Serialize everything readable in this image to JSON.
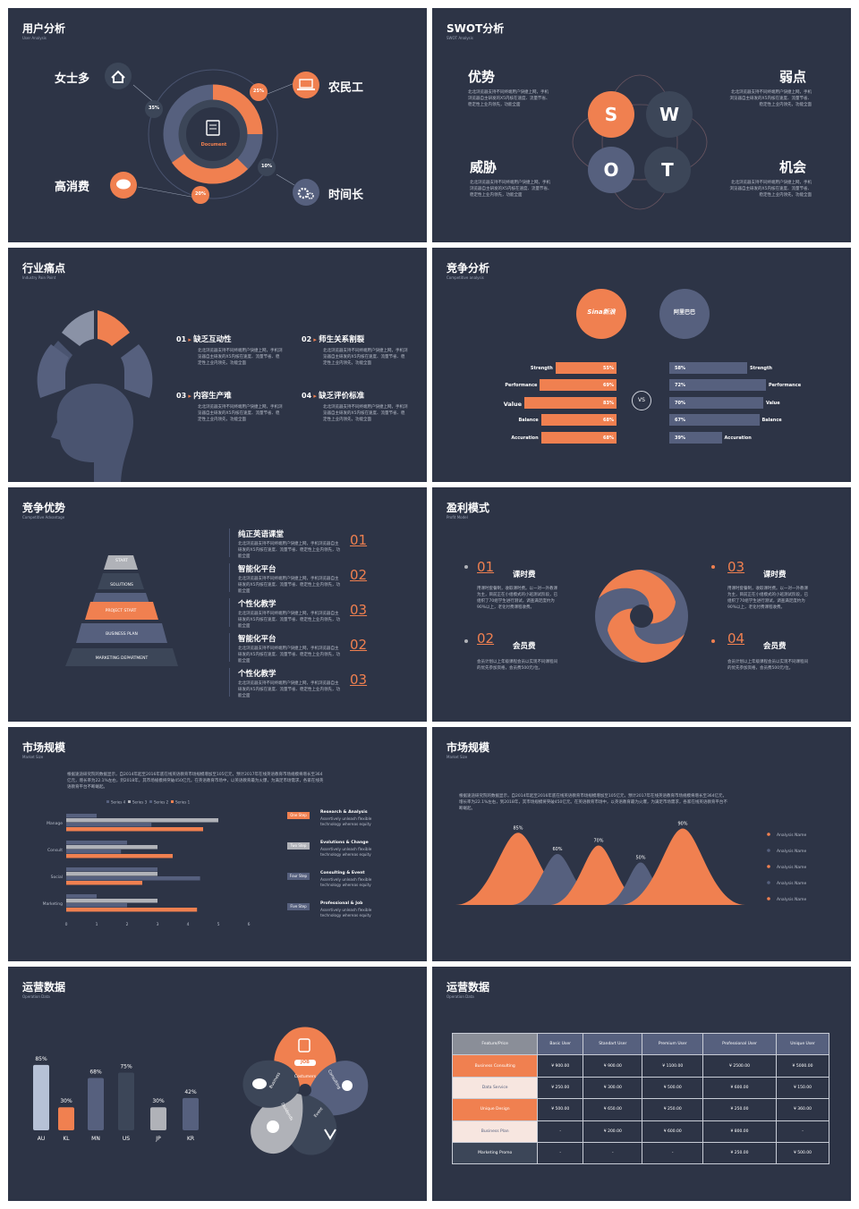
{
  "colors": {
    "bg": "#2d3446",
    "orange": "#f08050",
    "slate": "#56607e",
    "dark": "#3c4658",
    "gray": "#b0b2b8"
  },
  "s1": {
    "title": "用户分析",
    "sub": "User Analysis",
    "center": "Document",
    "l1": "女士多",
    "l2": "农民工",
    "l3": "高消费",
    "l4": "时间长",
    "p1": "35%",
    "p2": "25%",
    "p3": "20%",
    "p4": "10%",
    "icons": [
      "home-icon",
      "laptop-icon",
      "chat-icon",
      "gear-icon",
      "document-icon"
    ]
  },
  "s2": {
    "title": "SWOT分析",
    "sub": "SWOT Analysis",
    "h1": "优势",
    "h2": "弱点",
    "h3": "威胁",
    "h4": "机会",
    "S": "S",
    "W": "W",
    "O": "O",
    "T": "T",
    "d1": "北北浏览器支持不同终端用户快捷上网，手机浏览器自主研发的X5内核在速度、流量节省、稳定性上业内领先，功能全面",
    "d2": "北北浏览器支持不同终端用户快捷上网，手机浏览器自主研发的X5内核在速度、流量节省、稳定性上业内领先，功能全面",
    "d3": "北北浏览器支持不同终端用户快捷上网，手机浏览器自主研发的X5内核在速度、流量节省、稳定性上业内领先，功能全面",
    "d4": "北北浏览器支持不同终端用户快捷上网，手机浏览器自主研发的X5内核在速度、流量节省、稳定性上业内领先，功能全面"
  },
  "s3": {
    "title": "行业痛点",
    "sub": "Industry Pain Point",
    "items": [
      {
        "n": "01",
        "t": "缺乏互动性"
      },
      {
        "n": "02",
        "t": "师生关系割裂"
      },
      {
        "n": "03",
        "t": "内容生产难"
      },
      {
        "n": "04",
        "t": "缺乏评价标准"
      }
    ],
    "desc": "北北浏览器支持不同终端用户快捷上网，手机浏览器自主研发的X5内核在速度、流量节省、稳定性上业内领先，功能全面"
  },
  "s4": {
    "title": "竞争分析",
    "sub": "Competitive analysis",
    "logoL": "Sina新浪",
    "logoR": "阿里巴巴",
    "vs": "VS",
    "labels": [
      "Strength",
      "Performance",
      "Value",
      "Balance",
      "Accuration"
    ],
    "left": [
      55,
      69,
      83,
      68,
      68
    ],
    "right": [
      58,
      72,
      70,
      67,
      39
    ]
  },
  "s5": {
    "title": "竞争优势",
    "sub": "Competitive Advantage",
    "pyramid": [
      "START",
      "SOLUTIONS",
      "PROJECT START",
      "BUSINESS PLAN",
      "MARKETING DEPARTMENT"
    ],
    "items": [
      {
        "t": "纯正英语课堂",
        "n": "01"
      },
      {
        "t": "智能化平台",
        "n": "02"
      },
      {
        "t": "个性化教学",
        "n": "03"
      },
      {
        "t": "智能化平台",
        "n": "02"
      },
      {
        "t": "个性化教学",
        "n": "03"
      }
    ],
    "desc": "北北浏览器支持不同终端用户快捷上网，手机浏览器自主研发的X5内核在速度、流量节省、稳定性上业内领先，功能全面"
  },
  "s6": {
    "title": "盈利模式",
    "sub": "Profit Model",
    "items": [
      {
        "n": "01",
        "t": "课时费"
      },
      {
        "n": "02",
        "t": "会员费"
      },
      {
        "n": "03",
        "t": "课时费"
      },
      {
        "n": "04",
        "t": "会员费"
      }
    ],
    "d1": "用课时套餐制，收取课时费。以一对一外教课为主，目前正在小组模式的小班测试阶段，已组织了70组学生进行测试，调查满足度约为90%以上，老化付费课程收费。",
    "d2": "会员计划以上年级课程会员以实现不同课程间的优先参加资格，会员费500元/位。"
  },
  "s7": {
    "title": "市场规模",
    "sub": "Market Size",
    "para": "根据速途研究院的数据显示，自2014年起至2016年底在线英语教育市场规模增加至105亿元，预计2017年在线英语教育市场规模将增长至364亿元，增长率为22.1%左右，到2018年，其市场规模将突破450亿元。在英语教育市场中，以英语教育最为火爆，为满足市场需求，各家在线英语教育平台不断崛起。",
    "legend": [
      "Series 4",
      "Series 3",
      "Series 2",
      "Series 1"
    ],
    "steps": [
      {
        "tag": "One Step",
        "h": "Research & Analysis",
        "d1": "Assertively unleash flexible",
        "d2": "technology whereas equity"
      },
      {
        "tag": "Two Step",
        "h": "Evolutions & Change",
        "d1": "Assertively unleash flexible",
        "d2": "technology whereas equity"
      },
      {
        "tag": "Four Step",
        "h": "Consulting & Event",
        "d1": "Assertively unleash flexible",
        "d2": "technology whereas equity"
      },
      {
        "tag": "Five Step",
        "h": "Professional & Job",
        "d1": "Assertively unleash flexible",
        "d2": "technology whereas equity"
      }
    ]
  },
  "chart_data": [
    {
      "type": "bar",
      "orientation": "horizontal",
      "categories": [
        "Manage",
        "Consult",
        "Social",
        "Marketing"
      ],
      "series": [
        {
          "name": "Series 4",
          "values": [
            1,
            2,
            3,
            1
          ]
        },
        {
          "name": "Series 3",
          "values": [
            5,
            3,
            3,
            3
          ]
        },
        {
          "name": "Series 2",
          "values": [
            2.8,
            1.8,
            4.4,
            2
          ]
        },
        {
          "name": "Series 1",
          "values": [
            4.5,
            3.5,
            2.5,
            4.3
          ]
        }
      ],
      "xlim": [
        0,
        6
      ],
      "xticks": [
        0,
        1,
        2,
        3,
        4,
        5,
        6
      ]
    },
    {
      "type": "area",
      "title": "",
      "points": [
        {
          "label": "85%",
          "value": 85
        },
        {
          "label": "60%",
          "value": 60
        },
        {
          "label": "70%",
          "value": 70
        },
        {
          "label": "50%",
          "value": 50
        },
        {
          "label": "90%",
          "value": 90
        }
      ],
      "legend": [
        "Analysis Name",
        "Analysis Name",
        "Analysis Name",
        "Analysis Name",
        "Analysis Name"
      ]
    },
    {
      "type": "bar",
      "categories": [
        "AU",
        "KL",
        "MN",
        "US",
        "JP",
        "KR"
      ],
      "values": [
        85,
        30,
        68,
        75,
        30,
        42
      ],
      "labels": [
        "85%",
        "30%",
        "68%",
        "75%",
        "30%",
        "42%"
      ],
      "colors": [
        "#b6c1d6",
        "#f08050",
        "#56607e",
        "#3c4658",
        "#b0b2b8",
        "#56607e"
      ]
    }
  ],
  "s8": {
    "title": "市场规模",
    "sub": "Market Size",
    "para": "根据速途研究院的数据显示，自2014年起至2016年底在线英语教育市场规模增加至105亿元，预计2017年在线英语教育市场规模将增长至364亿元，增长率为22.1%左右，到2018年，其市场规模将突破450亿元。在英语教育市场中，以英语教育最为火爆，为满足市场需求，各家在线英语教育平台不断崛起。"
  },
  "s9": {
    "title": "运营数据",
    "sub": "Operation Data",
    "petals": [
      "Costumers",
      "Consulting",
      "Event",
      "Dividends",
      "Business"
    ],
    "badge": "JOB"
  },
  "s10": {
    "title": "运营数据",
    "sub": "Operation Data",
    "header": [
      "Feature/Price",
      "Basic User",
      "Standart User",
      "Premium User",
      "Professional User",
      "Unique User"
    ],
    "rows": [
      [
        "Business Consulting",
        "¥ 900.00",
        "¥ 900.00",
        "¥ 1100.00",
        "¥ 2500.00",
        "¥ 5000.00"
      ],
      [
        "Data Service",
        "¥ 250.00",
        "¥ 300.00",
        "¥ 500.00",
        "¥ 600.00",
        "¥ 150.00"
      ],
      [
        "Unique Design",
        "¥ 500.00",
        "¥ 650.00",
        "¥ 250.00",
        "¥ 250.00",
        "¥ 360.00"
      ],
      [
        "Business Plan",
        "-",
        "¥ 200.00",
        "¥ 600.00",
        "¥ 800.00",
        "-"
      ],
      [
        "Marketing Promo",
        "-",
        "-",
        "-",
        "¥ 250.00",
        "¥ 500.00"
      ]
    ]
  }
}
